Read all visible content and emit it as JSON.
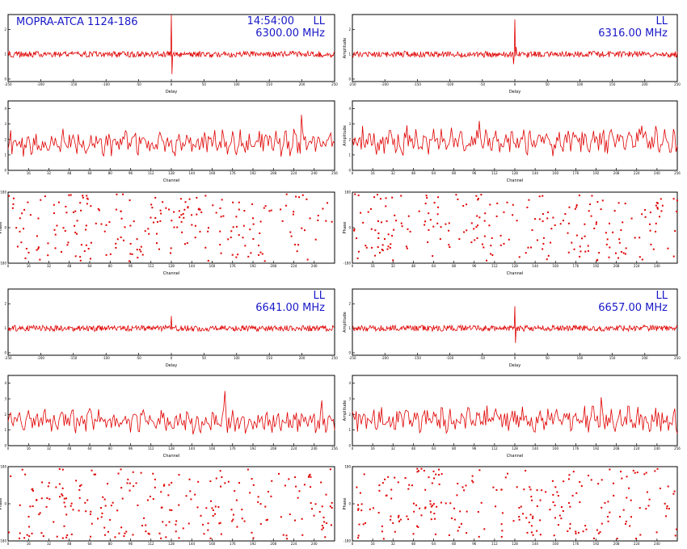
{
  "colors": {
    "trace": "#e00000",
    "annotation": "#1818c8",
    "frame": "#000000",
    "background": "#ffffff"
  },
  "header": {
    "source": "MOPRA-ATCA 1124-186",
    "time": "14:54:00"
  },
  "chart_data": [
    {
      "id": "ul-delay",
      "type": "line",
      "xlabel": "Delay",
      "ylabel": "",
      "xlim": [
        -250,
        250
      ],
      "xticks": [
        "-250",
        "-200",
        "-150",
        "-100",
        "-50",
        "0",
        "50",
        "100",
        "150",
        "200",
        "250"
      ],
      "yticks": [
        "0",
        "1",
        "2"
      ],
      "baseline": 1.0,
      "noise": 0.06,
      "spikes": [
        {
          "x": 0,
          "y": 2.6
        },
        {
          "x": 1,
          "y": 0.2
        }
      ],
      "pol": "LL",
      "freq": "6300.00 MHz",
      "title_left": "MOPRA-ATCA 1124-186",
      "time": "14:54:00"
    },
    {
      "id": "ur-delay",
      "type": "line",
      "xlabel": "Delay",
      "ylabel": "Amplitude",
      "xlim": [
        -250,
        250
      ],
      "xticks": [
        "-250",
        "-200",
        "-150",
        "-100",
        "-50",
        "0",
        "50",
        "100",
        "150",
        "200",
        "250"
      ],
      "yticks": [
        "0",
        "1",
        "2"
      ],
      "baseline": 1.0,
      "noise": 0.06,
      "spikes": [
        {
          "x": 0,
          "y": 2.4
        },
        {
          "x": -2,
          "y": 0.6
        },
        {
          "x": 2,
          "y": 1.3
        }
      ],
      "pol": "LL",
      "freq": "6316.00 MHz"
    },
    {
      "id": "ul-amp",
      "type": "line",
      "xlabel": "Channel",
      "ylabel": "",
      "xlim": [
        0,
        256
      ],
      "xticks": [
        "0",
        "16",
        "32",
        "48",
        "64",
        "80",
        "96",
        "112",
        "128",
        "144",
        "160",
        "176",
        "192",
        "208",
        "224",
        "240",
        "256"
      ],
      "yticks": [
        "0",
        "1",
        "2",
        "3",
        "4"
      ],
      "ylim": [
        0,
        4.5
      ],
      "mean": 1.6,
      "amp": 0.55,
      "peaks": [
        {
          "x": 230,
          "y": 3.6
        }
      ]
    },
    {
      "id": "ur-amp",
      "type": "line",
      "xlabel": "Channel",
      "ylabel": "Amplitude",
      "xlim": [
        0,
        256
      ],
      "xticks": [
        "0",
        "16",
        "32",
        "48",
        "64",
        "80",
        "96",
        "112",
        "128",
        "144",
        "160",
        "176",
        "192",
        "208",
        "224",
        "240",
        "256"
      ],
      "yticks": [
        "0",
        "1",
        "2",
        "3",
        "4"
      ],
      "ylim": [
        0,
        4.5
      ],
      "mean": 1.7,
      "amp": 0.6,
      "peaks": [
        {
          "x": 100,
          "y": 3.2
        },
        {
          "x": 228,
          "y": 2.9
        }
      ]
    },
    {
      "id": "ul-phase",
      "type": "scatter",
      "xlabel": "Channel",
      "ylabel": "Phase",
      "xlim": [
        0,
        256
      ],
      "xticks": [
        "0",
        "16",
        "32",
        "48",
        "64",
        "80",
        "96",
        "112",
        "128",
        "144",
        "160",
        "176",
        "192",
        "208",
        "224",
        "240"
      ],
      "yticks": [
        "-180",
        "0",
        "180"
      ],
      "ylim": [
        -180,
        180
      ],
      "npoints": 230
    },
    {
      "id": "ur-phase",
      "type": "scatter",
      "xlabel": "Channel",
      "ylabel": "Phase",
      "xlim": [
        0,
        256
      ],
      "xticks": [
        "0",
        "16",
        "32",
        "48",
        "64",
        "80",
        "96",
        "112",
        "128",
        "144",
        "160",
        "176",
        "192",
        "208",
        "224",
        "240"
      ],
      "yticks": [
        "-180",
        "0",
        "180"
      ],
      "ylim": [
        -180,
        180
      ],
      "npoints": 230
    },
    {
      "id": "ll-delay",
      "type": "line",
      "xlabel": "Delay",
      "ylabel": "",
      "xlim": [
        -250,
        250
      ],
      "xticks": [
        "-250",
        "-200",
        "-150",
        "-100",
        "-50",
        "0",
        "50",
        "100",
        "150",
        "200",
        "250"
      ],
      "yticks": [
        "0",
        "1",
        "2"
      ],
      "baseline": 1.0,
      "noise": 0.06,
      "spikes": [
        {
          "x": 0,
          "y": 1.5
        }
      ],
      "pol": "LL",
      "freq": "6641.00 MHz"
    },
    {
      "id": "lr-delay",
      "type": "line",
      "xlabel": "Delay",
      "ylabel": "Amplitude",
      "xlim": [
        -250,
        250
      ],
      "xticks": [
        "-250",
        "-200",
        "-150",
        "-100",
        "-50",
        "0",
        "50",
        "100",
        "150",
        "200",
        "250"
      ],
      "yticks": [
        "0",
        "1",
        "2"
      ],
      "baseline": 1.0,
      "noise": 0.06,
      "spikes": [
        {
          "x": 0,
          "y": 1.9
        },
        {
          "x": 1,
          "y": 0.4
        }
      ],
      "pol": "LL",
      "freq": "6657.00 MHz"
    },
    {
      "id": "ll-amp",
      "type": "line",
      "xlabel": "Channel",
      "ylabel": "",
      "xlim": [
        0,
        256
      ],
      "xticks": [
        "0",
        "16",
        "32",
        "48",
        "64",
        "80",
        "96",
        "112",
        "128",
        "144",
        "160",
        "176",
        "192",
        "208",
        "224",
        "240",
        "256"
      ],
      "yticks": [
        "0",
        "1",
        "2",
        "3",
        "4"
      ],
      "ylim": [
        0,
        4.5
      ],
      "mean": 1.4,
      "amp": 0.5,
      "peaks": [
        {
          "x": 170,
          "y": 3.5
        },
        {
          "x": 246,
          "y": 2.9
        }
      ]
    },
    {
      "id": "lr-amp",
      "type": "line",
      "xlabel": "Channel",
      "ylabel": "Amplitude",
      "xlim": [
        0,
        256
      ],
      "xticks": [
        "0",
        "16",
        "32",
        "48",
        "64",
        "80",
        "96",
        "112",
        "128",
        "144",
        "160",
        "176",
        "192",
        "208",
        "224",
        "240",
        "256"
      ],
      "yticks": [
        "0",
        "1",
        "2",
        "3",
        "4"
      ],
      "ylim": [
        0,
        4.5
      ],
      "mean": 1.5,
      "amp": 0.55,
      "peaks": [
        {
          "x": 196,
          "y": 3.1
        }
      ]
    },
    {
      "id": "ll-phase",
      "type": "scatter",
      "xlabel": "Channel",
      "ylabel": "Phase",
      "xlim": [
        0,
        256
      ],
      "xticks": [
        "0",
        "16",
        "32",
        "48",
        "64",
        "80",
        "96",
        "112",
        "128",
        "144",
        "160",
        "176",
        "192",
        "208",
        "224",
        "240"
      ],
      "yticks": [
        "-180",
        "0",
        "180"
      ],
      "ylim": [
        -180,
        180
      ],
      "npoints": 240
    },
    {
      "id": "lr-phase",
      "type": "scatter",
      "xlabel": "Channel",
      "ylabel": "Phase",
      "xlim": [
        0,
        256
      ],
      "xticks": [
        "0",
        "16",
        "32",
        "48",
        "64",
        "80",
        "96",
        "112",
        "128",
        "144",
        "160",
        "176",
        "192",
        "208",
        "224",
        "240"
      ],
      "yticks": [
        "-180",
        "0",
        "180"
      ],
      "ylim": [
        -180,
        180
      ],
      "npoints": 240
    }
  ]
}
